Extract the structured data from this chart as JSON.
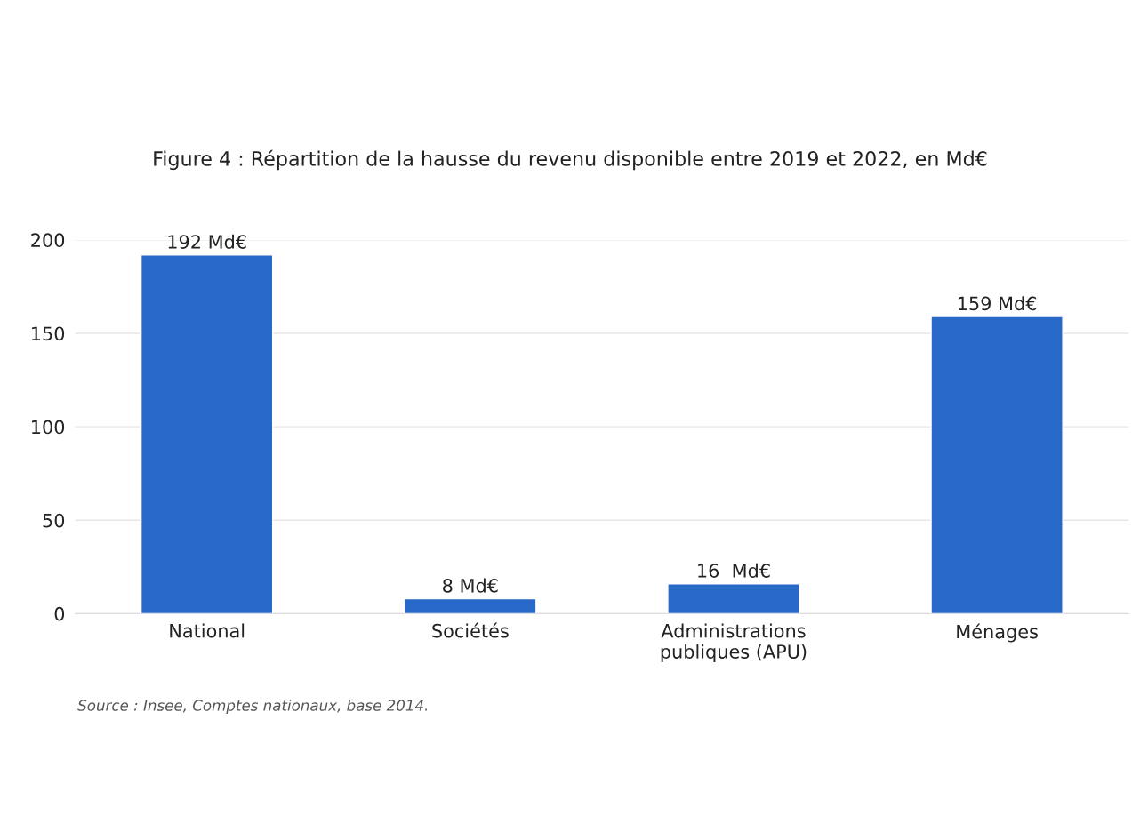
{
  "chart_data": {
    "type": "bar",
    "title": "Figure 4 : Répartition de la hausse du revenu disponible entre 2019 et 2022, en Md€",
    "categories": [
      "National",
      "Sociétés",
      "Administrations\npubliques (APU)",
      "Ménages"
    ],
    "values": [
      192,
      8,
      16,
      159
    ],
    "value_labels": [
      "192 Md€",
      "8 Md€",
      "16  Md€",
      "159 Md€"
    ],
    "color": "#2869c8",
    "ylim": [
      0,
      200
    ],
    "yticks": [
      0,
      50,
      100,
      150,
      200
    ],
    "grid": "y",
    "legend": false,
    "annotations": [
      "Source : Insee, Comptes nationaux, base 2014."
    ]
  }
}
